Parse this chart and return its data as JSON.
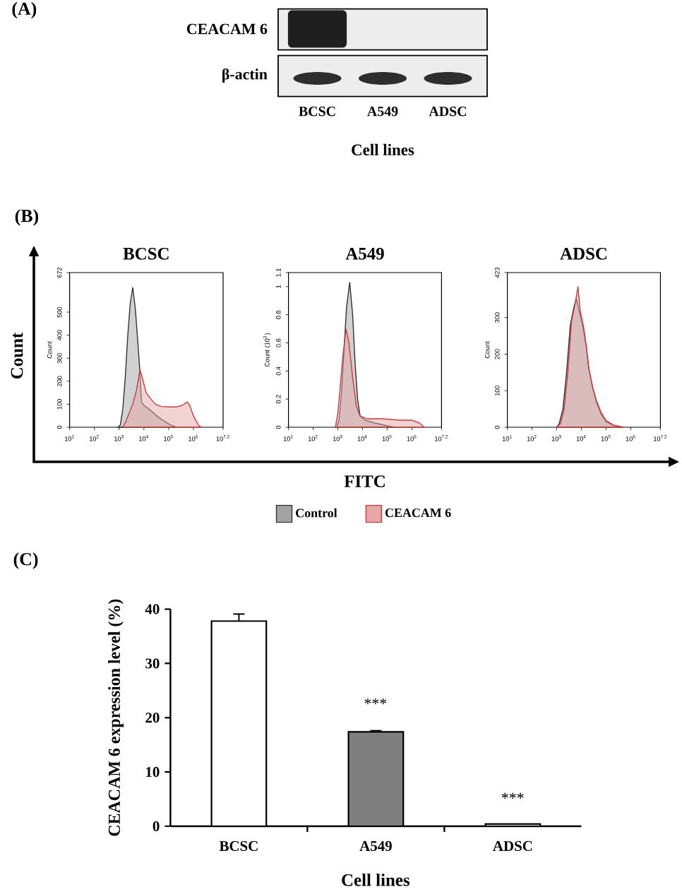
{
  "chart_data": [
    {
      "type": "other",
      "title": "(A)",
      "categories": [
        "BCSC",
        "A549",
        "ADSC"
      ],
      "annotations": [
        "CEACAM 6",
        "β-actin"
      ],
      "xlabel": "Cell lines"
    },
    {
      "type": "area",
      "title": "BCSC",
      "ylabel": "Count",
      "log": "x",
      "xlim": [
        10,
        15848932
      ],
      "xticks": [
        {
          "value": 10,
          "label": "10$^{1}$"
        },
        {
          "value": 100,
          "label": "10$^{2}$"
        },
        {
          "value": 1000,
          "label": "10$^{3}$"
        },
        {
          "value": 10000,
          "label": "10$^{4}$"
        },
        {
          "value": 100000,
          "label": "10$^{5}$"
        },
        {
          "value": 1000000,
          "label": "10$^{6}$"
        },
        {
          "value": 15848932,
          "label": "10$^{7.2}$"
        }
      ],
      "ylim": [
        0,
        672
      ],
      "yticks": [
        0,
        100,
        200,
        300,
        400,
        500,
        672
      ],
      "series": [
        {
          "color": "#333333",
          "x": [
            891,
            1120,
            1410,
            1780,
            2240,
            2820,
            3550,
            4470,
            5620,
            6920,
            7940,
            10000,
            15800,
            29500,
            50100,
            110000,
            200000
          ],
          "values": [
            0,
            10,
            80,
            220,
            400,
            540,
            607,
            520,
            380,
            240,
            110,
            95,
            80,
            54,
            35,
            12,
            0
          ]
        },
        {
          "color": "#c83c3c",
          "x": [
            1410,
            1780,
            2510,
            3550,
            5010,
            6920,
            8910,
            12300,
            20000,
            29500,
            50100,
            100000,
            200000,
            355000,
            562000,
            708000,
            1000000,
            1580000,
            2000000
          ],
          "values": [
            0,
            20,
            60,
            100,
            160,
            250,
            210,
            150,
            120,
            100,
            90,
            88,
            88,
            95,
            110,
            95,
            50,
            10,
            0
          ]
        }
      ],
      "annotations": [
        "(B)",
        "Count"
      ]
    },
    {
      "type": "area",
      "title": "A549",
      "ylabel": "Count (10$^{3}$)",
      "xlabel": "FITC",
      "log": "x",
      "legend": "bottom",
      "xlim": [
        10,
        15848932
      ],
      "xticks": [
        {
          "value": 10,
          "label": "10$^{1}$"
        },
        {
          "value": 100,
          "label": "10$^{2}$"
        },
        {
          "value": 1000,
          "label": "10$^{3}$"
        },
        {
          "value": 10000,
          "label": "10$^{4}$"
        },
        {
          "value": 100000,
          "label": "10$^{5}$"
        },
        {
          "value": 1000000,
          "label": "10$^{6}$"
        },
        {
          "value": 15848932,
          "label": "10$^{7.2}$"
        }
      ],
      "ylim": [
        0,
        1.1
      ],
      "yticks": [
        0,
        0.2,
        0.4,
        0.6,
        0.8,
        1,
        1.1
      ],
      "series": [
        {
          "name": "Control",
          "color": "#333333",
          "x": [
            891,
            1120,
            1410,
            1780,
            2240,
            3020,
            3980,
            5010,
            6310,
            7940,
            12600,
            31600,
            100000,
            200000
          ],
          "values": [
            0,
            0.05,
            0.25,
            0.55,
            0.85,
            1.03,
            0.8,
            0.45,
            0.2,
            0.08,
            0.05,
            0.03,
            0.01,
            0
          ]
        },
        {
          "name": "CEACAM 6",
          "color": "#c83c3c",
          "x": [
            794,
            1000,
            1260,
            1580,
            2140,
            2820,
            3980,
            5620,
            7940,
            15800,
            63100,
            316000,
            1000000,
            2000000,
            3160000
          ],
          "values": [
            0,
            0.1,
            0.3,
            0.5,
            0.7,
            0.6,
            0.35,
            0.15,
            0.08,
            0.06,
            0.06,
            0.05,
            0.05,
            0.03,
            0
          ]
        }
      ]
    },
    {
      "type": "area",
      "title": "ADSC",
      "ylabel": "Count",
      "log": "x",
      "xlim": [
        10,
        15848932
      ],
      "xticks": [
        {
          "value": 10,
          "label": "10$^{1}$"
        },
        {
          "value": 100,
          "label": "10$^{2}$"
        },
        {
          "value": 1000,
          "label": "10$^{3}$"
        },
        {
          "value": 10000,
          "label": "10$^{4}$"
        },
        {
          "value": 100000,
          "label": "10$^{5}$"
        },
        {
          "value": 1000000,
          "label": "10$^{6}$"
        },
        {
          "value": 15848932,
          "label": "10$^{7.2}$"
        }
      ],
      "ylim": [
        0,
        423
      ],
      "yticks": [
        0,
        100,
        200,
        300,
        423
      ],
      "series": [
        {
          "color": "#333333",
          "x": [
            1000,
            1260,
            1780,
            2510,
            3550,
            5010,
            6310,
            7940,
            11200,
            15800,
            20000,
            28200,
            39800,
            63100,
            100000,
            200000,
            398000
          ],
          "values": [
            0,
            10,
            50,
            150,
            280,
            330,
            351,
            320,
            280,
            220,
            160,
            110,
            70,
            35,
            15,
            5,
            0
          ]
        },
        {
          "color": "#c83c3c",
          "x": [
            1000,
            1410,
            2000,
            2820,
            3980,
            5620,
            7240,
            8910,
            12600,
            15800,
            20000,
            28200,
            39800,
            63100,
            100000,
            200000,
            501000
          ],
          "values": [
            0,
            10,
            50,
            150,
            290,
            340,
            384,
            320,
            270,
            220,
            160,
            110,
            75,
            40,
            18,
            6,
            0
          ]
        }
      ]
    },
    {
      "type": "bar",
      "title": "(C)",
      "categories": [
        "BCSC",
        "A549",
        "ADSC"
      ],
      "values": [
        37.8,
        17.4,
        0.4
      ],
      "errors": [
        [
          37.8,
          39.1
        ],
        [
          17.4,
          17.6
        ],
        null
      ],
      "colors": [
        "#ffffff",
        "#7f7f7f",
        "#ffffff"
      ],
      "ylim": [
        0,
        40
      ],
      "yticks": [
        0,
        10,
        20,
        30,
        40
      ],
      "ylabel": "CEACAM 6 expression level (%)",
      "xlabel": "Cell lines",
      "annotations": [
        "***",
        "***"
      ]
    }
  ]
}
